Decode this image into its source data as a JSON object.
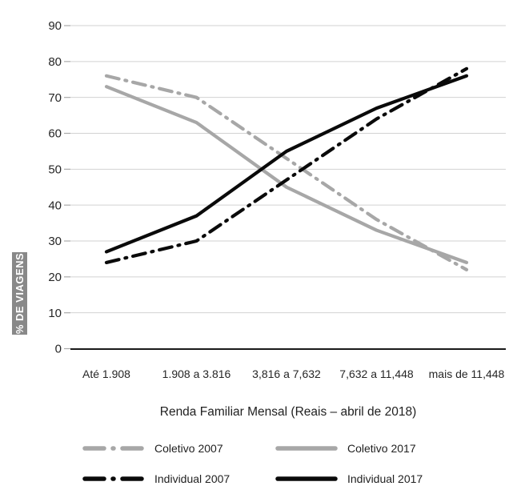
{
  "chart_data": {
    "type": "line",
    "title": "",
    "ylabel": "% DE VIAGENS",
    "xlabel": "Renda Familiar Mensal (Reais – abril de 2018)",
    "categories": [
      "Até 1.908",
      "1.908 a 3.816",
      "3,816 a 7,632",
      "7,632 a 11,448",
      "mais de 11,448"
    ],
    "ylim": [
      0,
      90
    ],
    "yticks": [
      0,
      10,
      20,
      30,
      40,
      50,
      60,
      70,
      80,
      90
    ],
    "grid": "horizontal-gridlines",
    "legend_position": "bottom-2x2",
    "series": [
      {
        "name": "Coletivo 2007",
        "color": "#a7a7a7",
        "style": "dash-dot",
        "values": [
          76,
          70,
          53,
          36,
          22
        ]
      },
      {
        "name": "Coletivo 2017",
        "color": "#a7a7a7",
        "style": "solid",
        "values": [
          73,
          63,
          45,
          33,
          24
        ]
      },
      {
        "name": "Individual 2007",
        "color": "#0a0a0a",
        "style": "dash-dot",
        "values": [
          24,
          30,
          47,
          64,
          78
        ]
      },
      {
        "name": "Individual 2017",
        "color": "#0a0a0a",
        "style": "solid",
        "values": [
          27,
          37,
          55,
          67,
          76
        ]
      }
    ]
  },
  "colors": {
    "gridline": "#d2d2d2",
    "tick_mark": "#a9a9a9",
    "axis_line": "#1a1a1a",
    "tick_label": "#262626",
    "ylabel_box_bg": "#888888",
    "ylabel_text": "#ffffff"
  }
}
